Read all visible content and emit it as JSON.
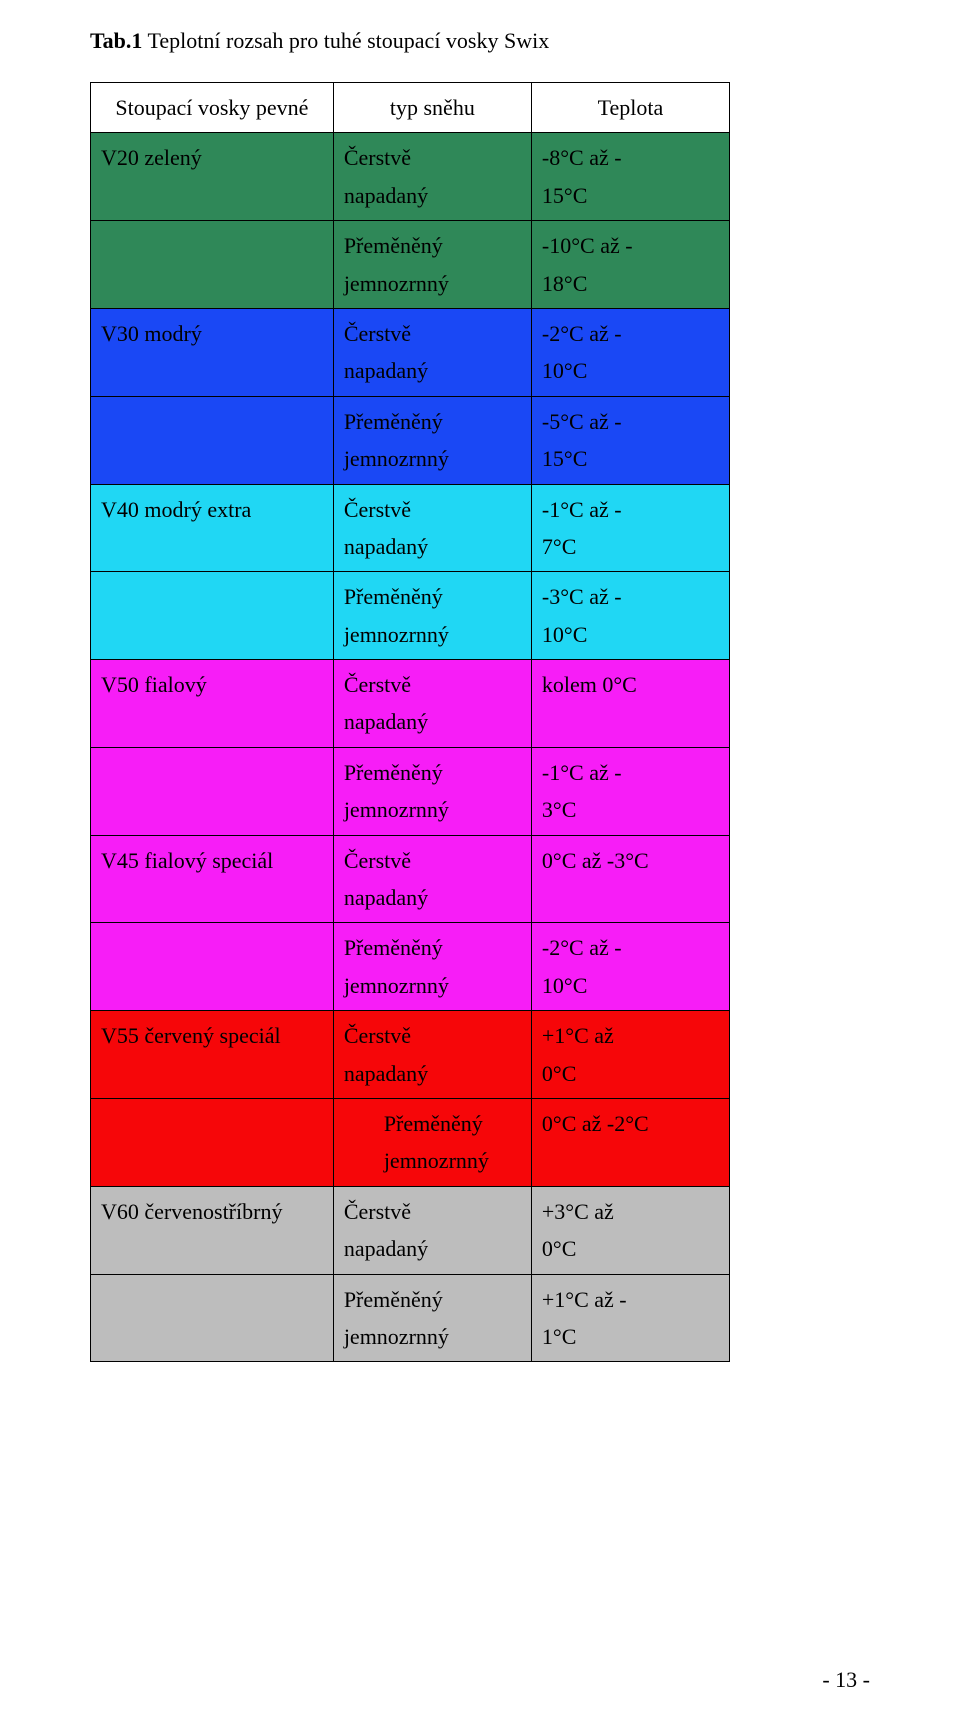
{
  "title_label_bold": "Tab.1",
  "title_label_rest": " Teplotní rozsah pro tuhé stoupací vosky Swix",
  "header": {
    "col1": "Stoupací vosky pevné",
    "col2": "typ sněhu",
    "col3": "Teplota"
  },
  "rows": [
    {
      "bg": "#2f8858",
      "name_line": "V20 zelený",
      "has_name": true,
      "snow1": "Čerstvě",
      "snow2": "napadaný",
      "temp1": "-8°C až -",
      "temp2": "15°C"
    },
    {
      "bg": "#2f8858",
      "name_line": "",
      "has_name": false,
      "snow1": "Přeměněný",
      "snow2": "jemnozrnný",
      "temp1": "-10°C až -",
      "temp2": "18°C"
    },
    {
      "bg": "#1a48f5",
      "name_line": "V30 modrý",
      "has_name": true,
      "snow1": "Čerstvě",
      "snow2": "napadaný",
      "temp1": "-2°C až -",
      "temp2": "10°C"
    },
    {
      "bg": "#1a48f5",
      "name_line": "",
      "has_name": false,
      "snow1": "Přeměněný",
      "snow2": "jemnozrnný",
      "temp1": "-5°C až -",
      "temp2": "15°C"
    },
    {
      "bg": "#20d7f4",
      "name_line": "V40 modrý extra",
      "has_name": true,
      "snow1": "Čerstvě",
      "snow2": "napadaný",
      "temp1": "-1°C až -",
      "temp2": "7°C"
    },
    {
      "bg": "#20d7f4",
      "name_line": "",
      "has_name": false,
      "snow1": "Přeměněný",
      "snow2": "jemnozrnný",
      "temp1": "-3°C až -",
      "temp2": "10°C"
    },
    {
      "bg": "#f71df7",
      "name_line": "V50 fialový",
      "has_name": true,
      "snow1": "Čerstvě",
      "snow2": "napadaný",
      "temp1": "kolem 0°C",
      "temp2": ""
    },
    {
      "bg": "#f71df7",
      "name_line": "",
      "has_name": false,
      "snow1": "Přeměněný",
      "snow2": "jemnozrnný",
      "temp1": "-1°C až -",
      "temp2": "3°C"
    },
    {
      "bg": "#f71df7",
      "name_line": "V45 fialový speciál",
      "has_name": true,
      "snow1": "Čerstvě",
      "snow2": "napadaný",
      "temp1": "0°C až -3°C",
      "temp2": ""
    },
    {
      "bg": "#f71df7",
      "name_line": "",
      "has_name": false,
      "snow1": "Přeměněný",
      "snow2": "jemnozrnný",
      "temp1": "-2°C až -",
      "temp2": "10°C"
    },
    {
      "bg": "#f60609",
      "name_line": "V55 červený speciál",
      "has_name": true,
      "snow1": "Čerstvě",
      "snow2": "napadaný",
      "temp1": "+1°C až",
      "temp2": "0°C"
    },
    {
      "bg": "#f60609",
      "name_line": "",
      "has_name": false,
      "snow1": "Přeměněný",
      "snow2": "jemnozrnný",
      "temp1": "0°C až -2°C",
      "temp2": "",
      "snow_indent": true
    },
    {
      "bg": "#bdbdbd",
      "name_line": "V60 červenostříbrný",
      "has_name": true,
      "snow1": "Čerstvě",
      "snow2": "napadaný",
      "temp1": "+3°C až",
      "temp2": "0°C"
    },
    {
      "bg": "#bdbdbd",
      "name_line": "",
      "has_name": false,
      "snow1": "Přeměněný",
      "snow2": "jemnozrnný",
      "temp1": "+1°C až -",
      "temp2": "1°C"
    }
  ],
  "page_number": "- 13 -"
}
